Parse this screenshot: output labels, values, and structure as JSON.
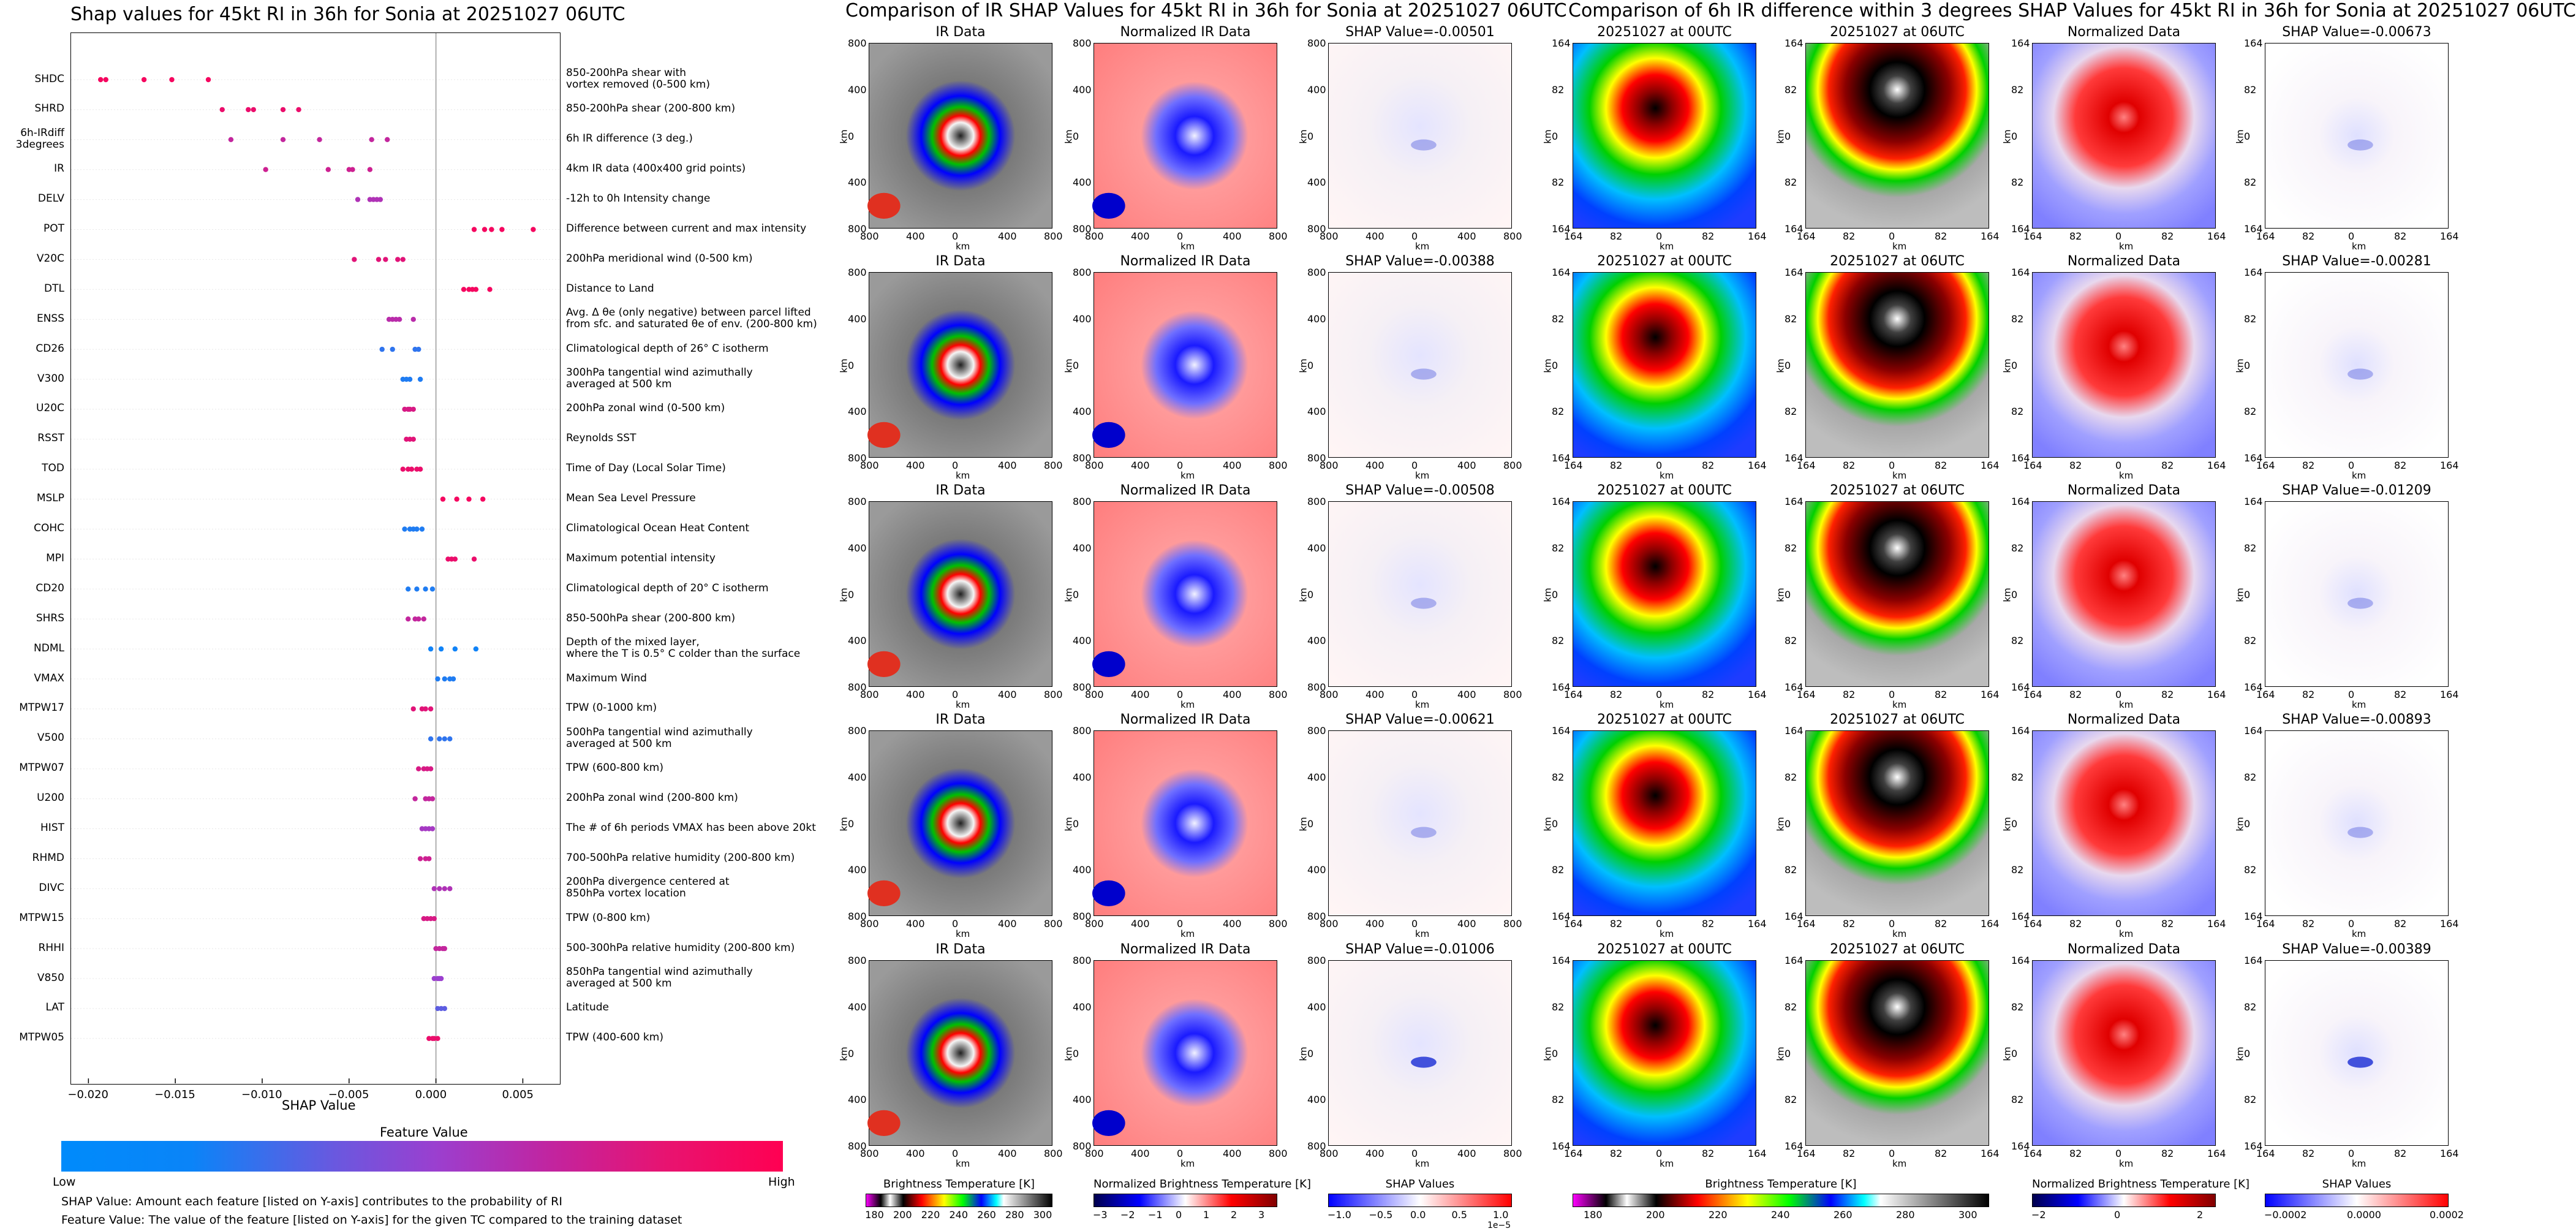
{
  "shap_title": "Shap values for 45kt RI in 36h for Sonia at 20251027 06UTC",
  "ir_title": "Comparison of IR SHAP Values for 45kt RI in 36h for Sonia at 20251027 06UTC",
  "diff_title": "Comparison of 6h IR difference within 3 degrees SHAP Values for 45kt RI in 36h for Sonia at 20251027 06UTC",
  "shap_xlabel": "SHAP Value",
  "colorbar": {
    "title": "Feature Value",
    "low": "Low",
    "high": "High",
    "low_color": "#008bfb",
    "high_color": "#ff0052"
  },
  "notes": [
    "SHAP Value: Amount each feature [listed on Y-axis] contributes to the probability of RI",
    "Feature Value: The value of the feature [listed on Y-axis] for the given TC compared to the training dataset"
  ],
  "panel_titles": {
    "ir": "IR Data",
    "nir": "Normalized IR Data",
    "t00": "20251027 at 00UTC",
    "t06": "20251027 at 06UTC",
    "nd": "Normalized Data"
  },
  "shap_ir_rows": [
    "SHAP Value=-0.00501",
    "SHAP Value=-0.00388",
    "SHAP Value=-0.00508",
    "SHAP Value=-0.00621",
    "SHAP Value=-0.01006"
  ],
  "shap_diff_rows": [
    "SHAP Value=-0.00673",
    "SHAP Value=-0.00281",
    "SHAP Value=-0.01209",
    "SHAP Value=-0.00893",
    "SHAP Value=-0.00389"
  ],
  "km_label": "km",
  "ir_ticks_x": [
    "800",
    "400",
    "0",
    "400",
    "800"
  ],
  "ir_ticks_y": [
    "800",
    "400",
    "0",
    "400",
    "800"
  ],
  "diff_ticks_x": [
    "164",
    "82",
    "0",
    "82",
    "164"
  ],
  "diff_ticks_y": [
    "164",
    "82",
    "0",
    "82",
    "164"
  ],
  "bottom_colorbars": [
    {
      "label": "Brightness Temperature [K]",
      "ticks": [
        "180",
        "200",
        "220",
        "240",
        "260",
        "280",
        "300"
      ]
    },
    {
      "label": "Normalized Brightness Temperature [K]",
      "ticks": [
        "−3",
        "−2",
        "−1",
        "0",
        "1",
        "2",
        "3"
      ]
    },
    {
      "label": "SHAP Values",
      "ticks": [
        "−1.0",
        "−0.5",
        "0.0",
        "0.5",
        "1.0"
      ],
      "exp": "1e−5"
    },
    {
      "label": "Brightness Temperature [K]",
      "ticks": [
        "180",
        "200",
        "220",
        "240",
        "260",
        "280",
        "300"
      ]
    },
    {
      "label": "Normalized Brightness Temperature [K]",
      "ticks": [
        "−2",
        "0",
        "2"
      ]
    },
    {
      "label": "SHAP Values",
      "ticks": [
        "−0.0002",
        "0.0000",
        "0.0002"
      ]
    }
  ],
  "chart_data": {
    "type": "scatter",
    "title": "Shap values for 45kt RI in 36h for Sonia at 20251027 06UTC",
    "xlabel": "SHAP Value",
    "xlim": [
      -0.021,
      0.0071
    ],
    "xticks": [
      "−0.020",
      "−0.015",
      "−0.010",
      "−0.005",
      "0.000",
      "0.005"
    ],
    "xtick_values": [
      -0.02,
      -0.015,
      -0.01,
      -0.005,
      0.0,
      0.005
    ],
    "features": [
      {
        "name": "SHDC",
        "desc": "850-200hPa shear with\nvortex removed (0-500 km)",
        "points": [
          [
            -0.0193,
            0.95
          ],
          [
            -0.019,
            0.95
          ],
          [
            -0.0168,
            0.95
          ],
          [
            -0.0152,
            0.95
          ],
          [
            -0.0131,
            0.95
          ]
        ]
      },
      {
        "name": "SHRD",
        "desc": "850-200hPa shear (200-800 km)",
        "points": [
          [
            -0.0123,
            0.9
          ],
          [
            -0.0108,
            0.9
          ],
          [
            -0.0105,
            0.9
          ],
          [
            -0.0088,
            0.9
          ],
          [
            -0.0079,
            0.9
          ]
        ]
      },
      {
        "name": "6h-IRdiff\n3degrees",
        "desc": "6h IR difference (3 deg.)",
        "points": [
          [
            -0.0118,
            0.7
          ],
          [
            -0.0088,
            0.7
          ],
          [
            -0.0067,
            0.7
          ],
          [
            -0.0037,
            0.7
          ],
          [
            -0.0028,
            0.7
          ]
        ]
      },
      {
        "name": "IR",
        "desc": "4km IR data (400x400 grid points)",
        "points": [
          [
            -0.0098,
            0.75
          ],
          [
            -0.0062,
            0.75
          ],
          [
            -0.005,
            0.75
          ],
          [
            -0.0048,
            0.75
          ],
          [
            -0.0038,
            0.75
          ]
        ]
      },
      {
        "name": "DELV",
        "desc": "-12h to 0h Intensity change",
        "points": [
          [
            -0.0045,
            0.6
          ],
          [
            -0.0038,
            0.6
          ],
          [
            -0.0036,
            0.6
          ],
          [
            -0.0034,
            0.6
          ],
          [
            -0.0032,
            0.6
          ]
        ]
      },
      {
        "name": "POT",
        "desc": "Difference between current and max intensity",
        "points": [
          [
            0.0022,
            0.95
          ],
          [
            0.0028,
            0.95
          ],
          [
            0.0032,
            0.95
          ],
          [
            0.0038,
            0.95
          ],
          [
            0.0056,
            0.95
          ]
        ]
      },
      {
        "name": "V20C",
        "desc": "200hPa meridional wind (0-500 km)",
        "points": [
          [
            -0.0047,
            0.85
          ],
          [
            -0.0033,
            0.85
          ],
          [
            -0.0029,
            0.85
          ],
          [
            -0.0022,
            0.85
          ],
          [
            -0.0019,
            0.85
          ]
        ]
      },
      {
        "name": "DTL",
        "desc": "Distance to Land",
        "points": [
          [
            0.0016,
            0.95
          ],
          [
            0.0019,
            0.95
          ],
          [
            0.0021,
            0.95
          ],
          [
            0.0023,
            0.95
          ],
          [
            0.0031,
            0.95
          ]
        ]
      },
      {
        "name": "ENSS",
        "desc": "Avg. Δ θe (only negative) between parcel lifted\nfrom sfc. and saturated θe of env. (200-800 km)",
        "points": [
          [
            -0.0027,
            0.65
          ],
          [
            -0.0025,
            0.65
          ],
          [
            -0.0023,
            0.65
          ],
          [
            -0.0021,
            0.65
          ],
          [
            -0.0013,
            0.65
          ]
        ]
      },
      {
        "name": "CD26",
        "desc": "Climatological depth of 26° C isotherm",
        "points": [
          [
            -0.0031,
            0.15
          ],
          [
            -0.0025,
            0.15
          ],
          [
            -0.0012,
            0.15
          ],
          [
            -0.001,
            0.15
          ]
        ]
      },
      {
        "name": "V300",
        "desc": "300hPa tangential wind azimuthally\naveraged at 500 km",
        "points": [
          [
            -0.0019,
            0.1
          ],
          [
            -0.0017,
            0.1
          ],
          [
            -0.0015,
            0.1
          ],
          [
            -0.0009,
            0.1
          ]
        ]
      },
      {
        "name": "U20C",
        "desc": "200hPa zonal wind (0-500 km)",
        "points": [
          [
            -0.0018,
            0.8
          ],
          [
            -0.0016,
            0.8
          ],
          [
            -0.0015,
            0.8
          ],
          [
            -0.0013,
            0.8
          ]
        ]
      },
      {
        "name": "RSST",
        "desc": "Reynolds SST",
        "points": [
          [
            -0.0017,
            0.85
          ],
          [
            -0.0015,
            0.85
          ],
          [
            -0.0013,
            0.85
          ]
        ]
      },
      {
        "name": "TOD",
        "desc": "Time of Day (Local Solar Time)",
        "points": [
          [
            -0.0019,
            0.9
          ],
          [
            -0.0016,
            0.9
          ],
          [
            -0.0014,
            0.9
          ],
          [
            -0.0011,
            0.9
          ],
          [
            -0.0009,
            0.9
          ]
        ]
      },
      {
        "name": "MSLP",
        "desc": "Mean Sea Level Pressure",
        "points": [
          [
            0.0004,
            0.95
          ],
          [
            0.0012,
            0.95
          ],
          [
            0.0019,
            0.95
          ],
          [
            0.0027,
            0.95
          ]
        ]
      },
      {
        "name": "COHC",
        "desc": "Climatological Ocean Heat Content",
        "points": [
          [
            -0.0018,
            0.1
          ],
          [
            -0.0015,
            0.1
          ],
          [
            -0.0013,
            0.1
          ],
          [
            -0.0011,
            0.1
          ],
          [
            -0.0008,
            0.1
          ]
        ]
      },
      {
        "name": "MPI",
        "desc": "Maximum potential intensity",
        "points": [
          [
            0.0007,
            0.9
          ],
          [
            0.0009,
            0.9
          ],
          [
            0.0011,
            0.9
          ],
          [
            0.0022,
            0.9
          ]
        ]
      },
      {
        "name": "CD20",
        "desc": "Climatological depth of 20° C isotherm",
        "points": [
          [
            -0.0016,
            0.1
          ],
          [
            -0.0011,
            0.1
          ],
          [
            -0.0006,
            0.1
          ],
          [
            -0.0002,
            0.1
          ]
        ]
      },
      {
        "name": "SHRS",
        "desc": "850-500hPa shear (200-800 km)",
        "points": [
          [
            -0.0016,
            0.7
          ],
          [
            -0.0012,
            0.7
          ],
          [
            -0.001,
            0.7
          ],
          [
            -0.0007,
            0.7
          ]
        ]
      },
      {
        "name": "NDML",
        "desc": "Depth of the mixed layer,\nwhere the T is 0.5° C colder than the surface",
        "points": [
          [
            -0.0003,
            0.05
          ],
          [
            0.0003,
            0.05
          ],
          [
            0.0011,
            0.05
          ],
          [
            0.0023,
            0.05
          ]
        ]
      },
      {
        "name": "VMAX",
        "desc": "Maximum Wind",
        "points": [
          [
            0.0001,
            0.1
          ],
          [
            0.0005,
            0.1
          ],
          [
            0.0008,
            0.1
          ],
          [
            0.001,
            0.1
          ]
        ]
      },
      {
        "name": "MTPW17",
        "desc": "TPW (0-1000 km)",
        "points": [
          [
            -0.0013,
            0.85
          ],
          [
            -0.0008,
            0.85
          ],
          [
            -0.0006,
            0.85
          ],
          [
            -0.0003,
            0.85
          ]
        ]
      },
      {
        "name": "V500",
        "desc": "500hPa tangential wind azimuthally\naveraged at 500 km",
        "points": [
          [
            -0.0003,
            0.15
          ],
          [
            0.0002,
            0.15
          ],
          [
            0.0005,
            0.15
          ],
          [
            0.0008,
            0.15
          ]
        ]
      },
      {
        "name": "MTPW07",
        "desc": "TPW (600-800 km)",
        "points": [
          [
            -0.001,
            0.8
          ],
          [
            -0.0007,
            0.8
          ],
          [
            -0.0005,
            0.8
          ],
          [
            -0.0003,
            0.8
          ]
        ]
      },
      {
        "name": "U200",
        "desc": "200hPa zonal wind (200-800 km)",
        "points": [
          [
            -0.0012,
            0.7
          ],
          [
            -0.0006,
            0.7
          ],
          [
            -0.0004,
            0.7
          ],
          [
            -0.0002,
            0.7
          ]
        ]
      },
      {
        "name": "HIST",
        "desc": "The # of 6h periods VMAX has been above 20kt",
        "points": [
          [
            -0.0008,
            0.55
          ],
          [
            -0.0006,
            0.55
          ],
          [
            -0.0004,
            0.55
          ],
          [
            -0.0002,
            0.55
          ]
        ]
      },
      {
        "name": "RHMD",
        "desc": "700-500hPa relative humidity (200-800 km)",
        "points": [
          [
            -0.0009,
            0.75
          ],
          [
            -0.0006,
            0.75
          ],
          [
            -0.0004,
            0.75
          ]
        ]
      },
      {
        "name": "DIVC",
        "desc": "200hPa divergence centered at\n850hPa vortex location",
        "points": [
          [
            -0.0001,
            0.6
          ],
          [
            0.0002,
            0.6
          ],
          [
            0.0005,
            0.6
          ],
          [
            0.0008,
            0.6
          ]
        ]
      },
      {
        "name": "MTPW15",
        "desc": "TPW (0-800 km)",
        "points": [
          [
            -0.0007,
            0.8
          ],
          [
            -0.0005,
            0.8
          ],
          [
            -0.0003,
            0.8
          ],
          [
            -0.0001,
            0.8
          ]
        ]
      },
      {
        "name": "RHHI",
        "desc": "500-300hPa relative humidity (200-800 km)",
        "points": [
          [
            0.0,
            0.7
          ],
          [
            0.0002,
            0.7
          ],
          [
            0.0004,
            0.7
          ],
          [
            0.0005,
            0.7
          ]
        ]
      },
      {
        "name": "V850",
        "desc": "850hPa tangential wind azimuthally\naveraged at 500 km",
        "points": [
          [
            -0.0001,
            0.5
          ],
          [
            0.0001,
            0.5
          ],
          [
            0.0002,
            0.5
          ],
          [
            0.0003,
            0.5
          ]
        ]
      },
      {
        "name": "LAT",
        "desc": "Latitude",
        "points": [
          [
            0.0001,
            0.3
          ],
          [
            0.0003,
            0.3
          ],
          [
            0.0005,
            0.3
          ]
        ]
      },
      {
        "name": "MTPW05",
        "desc": "TPW (400-600 km)",
        "points": [
          [
            -0.0004,
            0.9
          ],
          [
            -0.0002,
            0.9
          ],
          [
            -0.0001,
            0.9
          ],
          [
            0.0001,
            0.9
          ]
        ]
      }
    ]
  }
}
